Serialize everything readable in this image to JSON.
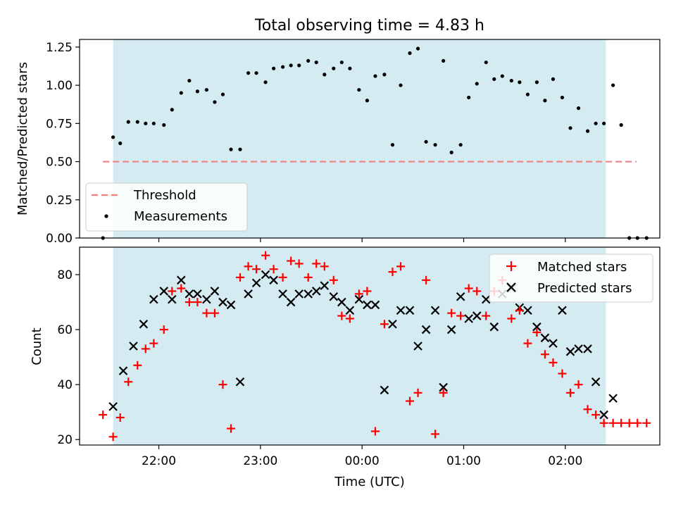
{
  "chart_data": {
    "type": "scatter",
    "title": "Total observing time = 4.83 h",
    "shade_color": "#d4ebf1",
    "panels": [
      {
        "id": "top",
        "ylabel": "Matched/Predicted stars",
        "ylim": [
          0,
          1.3
        ],
        "yticks": [
          "0.00",
          "0.25",
          "0.50",
          "0.75",
          "1.00",
          "1.25"
        ],
        "ytick_values": [
          0,
          0.25,
          0.5,
          0.75,
          1.0,
          1.25
        ],
        "legend": {
          "position": "lower-left",
          "entries": [
            "Threshold",
            "Measurements"
          ]
        },
        "threshold": {
          "name": "Threshold",
          "value": 0.5,
          "x_start": 21.45,
          "x_end": 26.7,
          "color": "#f08080"
        },
        "series": [
          {
            "name": "Measurements",
            "marker": "dot",
            "color": "#000000",
            "points": [
              [
                21.45,
                0.0
              ],
              [
                21.55,
                0.66
              ],
              [
                21.62,
                0.62
              ],
              [
                21.7,
                0.76
              ],
              [
                21.79,
                0.76
              ],
              [
                21.87,
                0.75
              ],
              [
                21.95,
                0.75
              ],
              [
                22.05,
                0.74
              ],
              [
                22.13,
                0.84
              ],
              [
                22.22,
                0.95
              ],
              [
                22.3,
                1.03
              ],
              [
                22.38,
                0.96
              ],
              [
                22.47,
                0.97
              ],
              [
                22.55,
                0.89
              ],
              [
                22.63,
                0.94
              ],
              [
                22.71,
                0.58
              ],
              [
                22.8,
                0.58
              ],
              [
                22.88,
                1.08
              ],
              [
                22.96,
                1.08
              ],
              [
                23.05,
                1.02
              ],
              [
                23.13,
                1.11
              ],
              [
                23.22,
                1.12
              ],
              [
                23.3,
                1.13
              ],
              [
                23.38,
                1.13
              ],
              [
                23.47,
                1.16
              ],
              [
                23.55,
                1.15
              ],
              [
                23.63,
                1.07
              ],
              [
                23.72,
                1.11
              ],
              [
                23.8,
                1.15
              ],
              [
                23.88,
                1.11
              ],
              [
                23.97,
                0.97
              ],
              [
                24.05,
                0.9
              ],
              [
                24.13,
                1.06
              ],
              [
                24.22,
                1.07
              ],
              [
                24.3,
                0.61
              ],
              [
                24.38,
                1.0
              ],
              [
                24.47,
                1.21
              ],
              [
                24.55,
                1.24
              ],
              [
                24.63,
                0.63
              ],
              [
                24.72,
                0.61
              ],
              [
                24.8,
                1.16
              ],
              [
                24.88,
                0.56
              ],
              [
                24.97,
                0.61
              ],
              [
                25.05,
                0.92
              ],
              [
                25.13,
                1.01
              ],
              [
                25.22,
                1.15
              ],
              [
                25.3,
                1.04
              ],
              [
                25.38,
                1.06
              ],
              [
                25.47,
                1.03
              ],
              [
                25.55,
                1.02
              ],
              [
                25.63,
                0.94
              ],
              [
                25.72,
                1.02
              ],
              [
                25.8,
                0.9
              ],
              [
                25.88,
                1.04
              ],
              [
                25.97,
                0.92
              ],
              [
                26.05,
                0.72
              ],
              [
                26.13,
                0.85
              ],
              [
                26.22,
                0.7
              ],
              [
                26.3,
                0.75
              ],
              [
                26.38,
                0.75
              ],
              [
                26.47,
                1.0
              ],
              [
                26.55,
                0.74
              ],
              [
                26.63,
                0.0
              ],
              [
                26.71,
                0.0
              ],
              [
                26.8,
                0.0
              ]
            ]
          }
        ]
      },
      {
        "id": "bottom",
        "ylabel": "Count",
        "ylim": [
          18,
          90
        ],
        "yticks": [
          "20",
          "40",
          "60",
          "80"
        ],
        "ytick_values": [
          20,
          40,
          60,
          80
        ],
        "legend": {
          "position": "top-right",
          "entries": [
            "Matched stars",
            "Predicted stars"
          ]
        },
        "series": [
          {
            "name": "Matched stars",
            "marker": "plus",
            "color": "#ff0000",
            "points": [
              [
                21.45,
                29
              ],
              [
                21.55,
                21
              ],
              [
                21.62,
                28
              ],
              [
                21.7,
                41
              ],
              [
                21.79,
                47
              ],
              [
                21.87,
                53
              ],
              [
                21.95,
                55
              ],
              [
                22.05,
                60
              ],
              [
                22.13,
                74
              ],
              [
                22.22,
                75
              ],
              [
                22.3,
                70
              ],
              [
                22.38,
                70
              ],
              [
                22.47,
                66
              ],
              [
                22.55,
                66
              ],
              [
                22.63,
                40
              ],
              [
                22.71,
                24
              ],
              [
                22.8,
                79
              ],
              [
                22.88,
                83
              ],
              [
                22.96,
                82
              ],
              [
                23.05,
                87
              ],
              [
                23.13,
                82
              ],
              [
                23.22,
                79
              ],
              [
                23.3,
                85
              ],
              [
                23.38,
                84
              ],
              [
                23.47,
                79
              ],
              [
                23.55,
                84
              ],
              [
                23.63,
                83
              ],
              [
                23.72,
                78
              ],
              [
                23.8,
                65
              ],
              [
                23.88,
                64
              ],
              [
                23.97,
                73
              ],
              [
                24.05,
                74
              ],
              [
                24.13,
                23
              ],
              [
                24.22,
                62
              ],
              [
                24.3,
                81
              ],
              [
                24.38,
                83
              ],
              [
                24.47,
                34
              ],
              [
                24.55,
                37
              ],
              [
                24.63,
                78
              ],
              [
                24.72,
                22
              ],
              [
                24.8,
                37
              ],
              [
                24.88,
                66
              ],
              [
                24.97,
                65
              ],
              [
                25.05,
                75
              ],
              [
                25.13,
                74
              ],
              [
                25.22,
                65
              ],
              [
                25.3,
                74
              ],
              [
                25.38,
                78
              ],
              [
                25.47,
                64
              ],
              [
                25.55,
                67
              ],
              [
                25.63,
                55
              ],
              [
                25.72,
                59
              ],
              [
                25.8,
                51
              ],
              [
                25.88,
                48
              ],
              [
                25.97,
                44
              ],
              [
                26.05,
                37
              ],
              [
                26.13,
                40
              ],
              [
                26.22,
                31
              ],
              [
                26.3,
                29
              ],
              [
                26.38,
                26
              ],
              [
                26.47,
                26
              ],
              [
                26.55,
                26
              ],
              [
                26.63,
                26
              ],
              [
                26.71,
                26
              ],
              [
                26.8,
                26
              ]
            ]
          },
          {
            "name": "Predicted stars",
            "marker": "x",
            "color": "#000000",
            "points": [
              [
                21.55,
                32
              ],
              [
                21.65,
                45
              ],
              [
                21.75,
                54
              ],
              [
                21.85,
                62
              ],
              [
                21.95,
                71
              ],
              [
                22.05,
                74
              ],
              [
                22.13,
                71
              ],
              [
                22.22,
                78
              ],
              [
                22.3,
                73
              ],
              [
                22.38,
                73
              ],
              [
                22.47,
                71
              ],
              [
                22.55,
                74
              ],
              [
                22.63,
                70
              ],
              [
                22.71,
                69
              ],
              [
                22.8,
                41
              ],
              [
                22.88,
                73
              ],
              [
                22.96,
                77
              ],
              [
                23.05,
                80
              ],
              [
                23.13,
                78
              ],
              [
                23.22,
                73
              ],
              [
                23.3,
                70
              ],
              [
                23.38,
                73
              ],
              [
                23.47,
                73
              ],
              [
                23.55,
                74
              ],
              [
                23.63,
                76
              ],
              [
                23.72,
                72
              ],
              [
                23.8,
                70
              ],
              [
                23.88,
                67
              ],
              [
                23.97,
                71
              ],
              [
                24.05,
                69
              ],
              [
                24.13,
                69
              ],
              [
                24.22,
                38
              ],
              [
                24.3,
                62
              ],
              [
                24.38,
                67
              ],
              [
                24.47,
                67
              ],
              [
                24.55,
                54
              ],
              [
                24.63,
                60
              ],
              [
                24.72,
                67
              ],
              [
                24.8,
                39
              ],
              [
                24.88,
                60
              ],
              [
                24.97,
                72
              ],
              [
                25.05,
                64
              ],
              [
                25.13,
                65
              ],
              [
                25.22,
                71
              ],
              [
                25.3,
                61
              ],
              [
                25.38,
                73
              ],
              [
                25.47,
                75
              ],
              [
                25.55,
                68
              ],
              [
                25.63,
                67
              ],
              [
                25.72,
                61
              ],
              [
                25.8,
                57
              ],
              [
                25.88,
                55
              ],
              [
                25.97,
                67
              ],
              [
                26.05,
                52
              ],
              [
                26.13,
                53
              ],
              [
                26.22,
                53
              ],
              [
                26.3,
                41
              ],
              [
                26.38,
                29
              ],
              [
                26.47,
                35
              ]
            ]
          }
        ]
      }
    ],
    "xaxis": {
      "label": "Time (UTC)",
      "xlim": [
        21.22,
        26.93
      ],
      "ticks": [
        "22:00",
        "23:00",
        "00:00",
        "01:00",
        "02:00"
      ],
      "tick_values": [
        22,
        23,
        24,
        25,
        26
      ]
    },
    "observing_window": [
      21.55,
      26.4
    ]
  }
}
